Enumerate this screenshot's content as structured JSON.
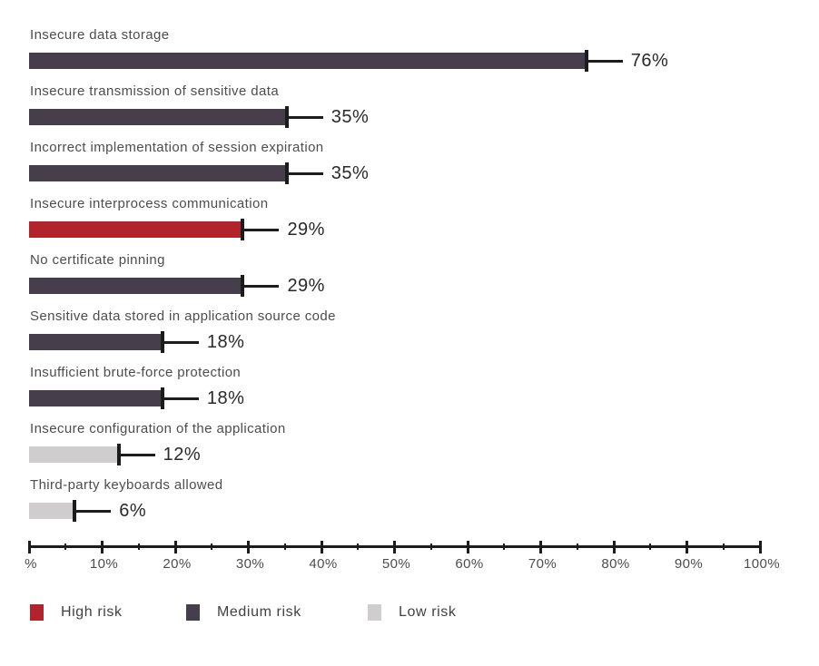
{
  "chart_data": {
    "type": "bar",
    "orientation": "horizontal",
    "title": "",
    "xlabel": "",
    "ylabel": "",
    "unit": "%",
    "xlim": [
      0,
      100
    ],
    "grid": false,
    "axis_tick_labels": [
      "%",
      "10%",
      "20%",
      "30%",
      "40%",
      "50%",
      "60%",
      "70%",
      "80%",
      "90%",
      "100%"
    ],
    "axis_tick_values": [
      0,
      10,
      20,
      30,
      40,
      50,
      60,
      70,
      80,
      90,
      100
    ],
    "minor_tick_step": 5,
    "rows": [
      {
        "label": "Insecure data storage",
        "value": 76,
        "value_label": "76%",
        "risk": "medium"
      },
      {
        "label": "Insecure transmission of sensitive data",
        "value": 35,
        "value_label": "35%",
        "risk": "medium"
      },
      {
        "label": "Incorrect implementation of session expiration",
        "value": 35,
        "value_label": "35%",
        "risk": "medium"
      },
      {
        "label": "Insecure interprocess communication",
        "value": 29,
        "value_label": "29%",
        "risk": "high"
      },
      {
        "label": "No certificate pinning",
        "value": 29,
        "value_label": "29%",
        "risk": "medium"
      },
      {
        "label": "Sensitive data stored in application source code",
        "value": 18,
        "value_label": "18%",
        "risk": "medium"
      },
      {
        "label": "Insufficient brute-force protection",
        "value": 18,
        "value_label": "18%",
        "risk": "medium"
      },
      {
        "label": "Insecure configuration of the application",
        "value": 12,
        "value_label": "12%",
        "risk": "low"
      },
      {
        "label": "Third-party keyboards allowed",
        "value": 6,
        "value_label": "6%",
        "risk": "low"
      }
    ],
    "colors": {
      "high": "#b2232b",
      "medium": "#463e4b",
      "low": "#cfcdce",
      "axis": "#1c1c1c"
    },
    "legend": {
      "position": "bottom",
      "items": [
        {
          "key": "high",
          "label": "High risk",
          "color": "#b2232b"
        },
        {
          "key": "medium",
          "label": "Medium risk",
          "color": "#463e4b"
        },
        {
          "key": "low",
          "label": "Low risk",
          "color": "#cfcdce"
        }
      ]
    }
  }
}
